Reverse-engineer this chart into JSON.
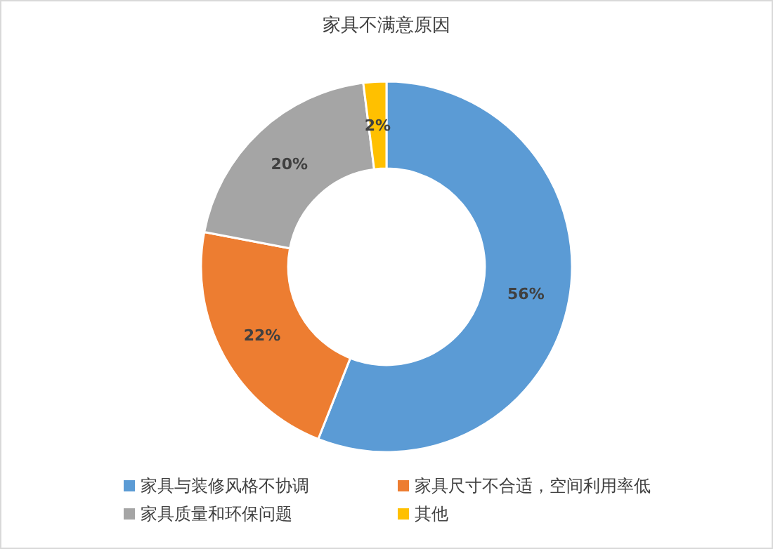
{
  "chart_data": {
    "type": "donut",
    "title": "家具不满意原因",
    "categories": [
      "家具与装修风格不协调",
      "家具尺寸不合适，空间利用率低",
      "家具质量和环保问题",
      "其他"
    ],
    "values": [
      56,
      22,
      20,
      2
    ],
    "colors": [
      "#5b9bd5",
      "#ed7d31",
      "#a5a5a5",
      "#ffc000"
    ],
    "value_labels": [
      "56%",
      "22%",
      "20%",
      "2%"
    ],
    "legend": "bottom"
  }
}
